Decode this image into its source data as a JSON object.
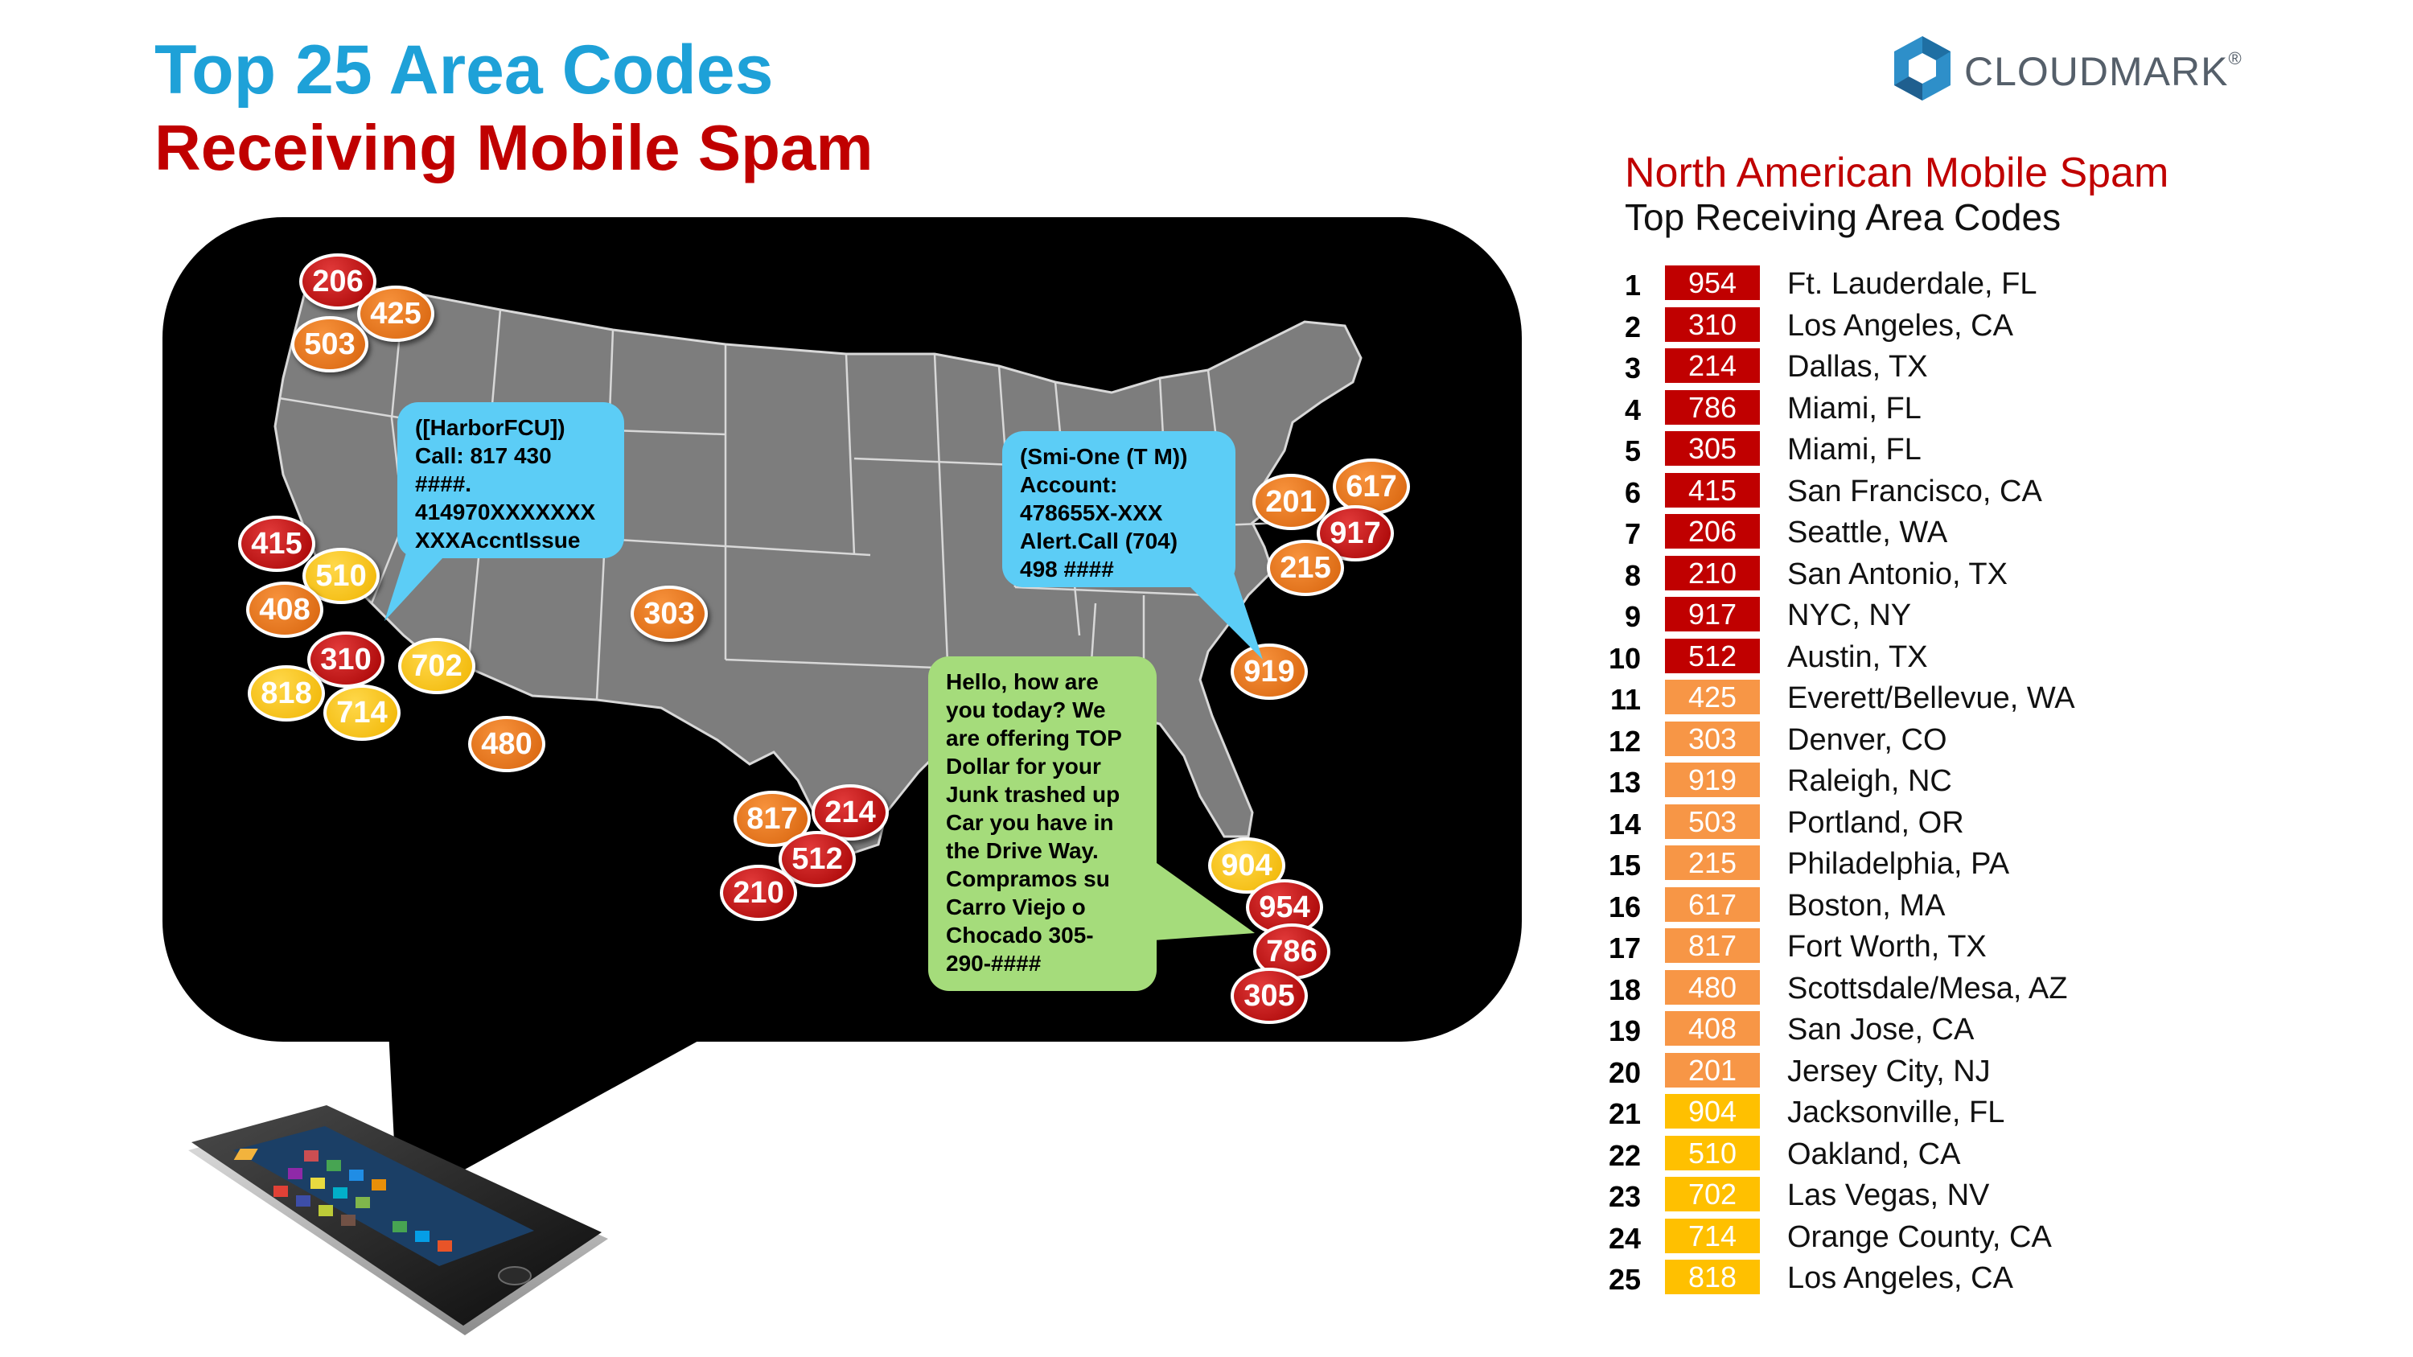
{
  "title": {
    "line1": "Top 25 Area Codes",
    "line2": "Receiving Mobile Spam"
  },
  "logo": {
    "text": "CLOUDMARK",
    "mark": "®"
  },
  "legend": {
    "title": "North American Mobile Spam",
    "subtitle": "Top Receiving Area Codes"
  },
  "colors": {
    "title_blue": "#1ea1d8",
    "title_red": "#c00000",
    "tier_red": "#c00000",
    "tier_orange": "#f79646",
    "tier_yellow": "#ffc000",
    "callout_blue": "#5ccdf6",
    "callout_green": "#a5dc7b"
  },
  "rankings": [
    {
      "rank": "1",
      "code": "954",
      "city": "Ft. Lauderdale, FL",
      "tier": "red"
    },
    {
      "rank": "2",
      "code": "310",
      "city": "Los Angeles, CA",
      "tier": "red"
    },
    {
      "rank": "3",
      "code": "214",
      "city": "Dallas, TX",
      "tier": "red"
    },
    {
      "rank": "4",
      "code": "786",
      "city": "Miami, FL",
      "tier": "red"
    },
    {
      "rank": "5",
      "code": "305",
      "city": "Miami, FL",
      "tier": "red"
    },
    {
      "rank": "6",
      "code": "415",
      "city": "San Francisco, CA",
      "tier": "red"
    },
    {
      "rank": "7",
      "code": "206",
      "city": "Seattle, WA",
      "tier": "red"
    },
    {
      "rank": "8",
      "code": "210",
      "city": "San Antonio, TX",
      "tier": "red"
    },
    {
      "rank": "9",
      "code": "917",
      "city": "NYC, NY",
      "tier": "red"
    },
    {
      "rank": "10",
      "code": "512",
      "city": "Austin, TX",
      "tier": "red"
    },
    {
      "rank": "11",
      "code": "425",
      "city": "Everett/Bellevue, WA",
      "tier": "orange"
    },
    {
      "rank": "12",
      "code": "303",
      "city": "Denver, CO",
      "tier": "orange"
    },
    {
      "rank": "13",
      "code": "919",
      "city": "Raleigh, NC",
      "tier": "orange"
    },
    {
      "rank": "14",
      "code": "503",
      "city": "Portland, OR",
      "tier": "orange"
    },
    {
      "rank": "15",
      "code": "215",
      "city": "Philadelphia, PA",
      "tier": "orange"
    },
    {
      "rank": "16",
      "code": "617",
      "city": "Boston, MA",
      "tier": "orange"
    },
    {
      "rank": "17",
      "code": "817",
      "city": "Fort Worth, TX",
      "tier": "orange"
    },
    {
      "rank": "18",
      "code": "480",
      "city": "Scottsdale/Mesa, AZ",
      "tier": "orange"
    },
    {
      "rank": "19",
      "code": "408",
      "city": "San Jose, CA",
      "tier": "orange"
    },
    {
      "rank": "20",
      "code": "201",
      "city": "Jersey City, NJ",
      "tier": "orange"
    },
    {
      "rank": "21",
      "code": "904",
      "city": "Jacksonville, FL",
      "tier": "yellow"
    },
    {
      "rank": "22",
      "code": "510",
      "city": "Oakland, CA",
      "tier": "yellow"
    },
    {
      "rank": "23",
      "code": "702",
      "city": "Las Vegas, NV",
      "tier": "yellow"
    },
    {
      "rank": "24",
      "code": "714",
      "city": "Orange County, CA",
      "tier": "yellow"
    },
    {
      "rank": "25",
      "code": "818",
      "city": "Los Angeles, CA",
      "tier": "yellow"
    }
  ],
  "map_pins": [
    {
      "code": "206",
      "tier": "red"
    },
    {
      "code": "425",
      "tier": "orange"
    },
    {
      "code": "503",
      "tier": "orange"
    },
    {
      "code": "415",
      "tier": "red"
    },
    {
      "code": "510",
      "tier": "yellow"
    },
    {
      "code": "408",
      "tier": "orange"
    },
    {
      "code": "310",
      "tier": "red"
    },
    {
      "code": "702",
      "tier": "yellow"
    },
    {
      "code": "818",
      "tier": "yellow"
    },
    {
      "code": "714",
      "tier": "yellow"
    },
    {
      "code": "480",
      "tier": "orange"
    },
    {
      "code": "303",
      "tier": "orange"
    },
    {
      "code": "817",
      "tier": "orange"
    },
    {
      "code": "214",
      "tier": "red"
    },
    {
      "code": "512",
      "tier": "red"
    },
    {
      "code": "210",
      "tier": "red"
    },
    {
      "code": "201",
      "tier": "orange"
    },
    {
      "code": "617",
      "tier": "orange"
    },
    {
      "code": "917",
      "tier": "red"
    },
    {
      "code": "215",
      "tier": "orange"
    },
    {
      "code": "919",
      "tier": "orange"
    },
    {
      "code": "904",
      "tier": "yellow"
    },
    {
      "code": "954",
      "tier": "red"
    },
    {
      "code": "786",
      "tier": "red"
    },
    {
      "code": "305",
      "tier": "red"
    }
  ],
  "callouts": {
    "harbor": {
      "lines": [
        "([HarborFCU])",
        "Call: 817 430",
        "####.",
        "414970XXXXXXX",
        "XXXAccntIssue"
      ]
    },
    "smione": {
      "lines": [
        "(Smi-One (T M))",
        "Account:",
        "478655X-XXX",
        "Alert.Call  (704)",
        "498 ####"
      ]
    },
    "junkcar": {
      "lines": [
        "Hello, how are",
        "you today? We",
        "are offering TOP",
        "Dollar for your",
        "Junk trashed up",
        "Car you have in",
        "the Drive Way.",
        "Compramos su",
        "Carro Viejo o",
        "Chocado 305-",
        "290-####"
      ]
    }
  }
}
